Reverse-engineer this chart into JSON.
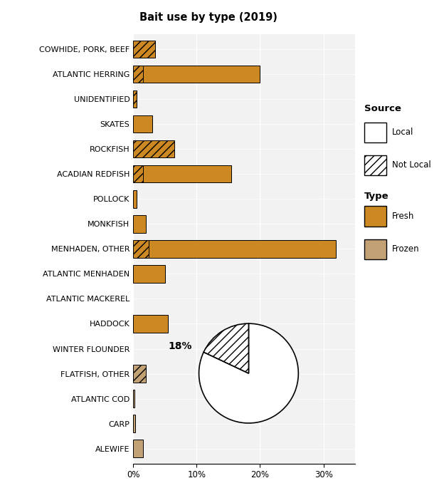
{
  "title": "Bait use by type (2019)",
  "categories": [
    "ALEWIFE",
    "CARP",
    "ATLANTIC COD",
    "FLATFISH, OTHER",
    "WINTER FLOUNDER",
    "HADDOCK",
    "ATLANTIC MACKEREL",
    "ATLANTIC MENHADEN",
    "MENHADEN, OTHER",
    "MONKFISH",
    "POLLOCK",
    "ACADIAN REDFISH",
    "ROCKFISH",
    "SKATES",
    "UNIDENTIFIED",
    "ATLANTIC HERRING",
    "COWHIDE, PORK, BEEF"
  ],
  "fresh_notlocal": [
    0.0,
    0.0,
    0.0,
    0.0,
    0.0,
    0.0,
    0.0,
    0.0,
    2.5,
    0.0,
    0.0,
    1.5,
    6.5,
    0.0,
    0.5,
    1.5,
    3.5
  ],
  "fresh_local": [
    0.0,
    0.0,
    0.0,
    0.0,
    0.0,
    5.5,
    0.0,
    5.0,
    29.5,
    2.0,
    0.5,
    14.0,
    0.0,
    3.0,
    0.0,
    18.5,
    0.0
  ],
  "frozen_notlocal": [
    0.0,
    0.0,
    0.0,
    2.0,
    0.0,
    0.0,
    0.0,
    0.0,
    0.0,
    0.0,
    0.0,
    0.0,
    0.0,
    0.0,
    0.0,
    0.0,
    0.0
  ],
  "frozen_local": [
    1.5,
    0.3,
    0.2,
    0.0,
    0.0,
    0.0,
    0.0,
    0.0,
    0.0,
    0.0,
    0.0,
    0.0,
    0.0,
    0.0,
    0.0,
    0.0,
    0.0
  ],
  "pie_notlocal_pct": 18,
  "pie_local_pct": 82,
  "fresh_color": "#CC8822",
  "frozen_color": "#C2A274",
  "hatch_pattern": "///",
  "xlim": [
    0,
    35
  ],
  "pie_label": "18%",
  "bar_height": 0.7
}
